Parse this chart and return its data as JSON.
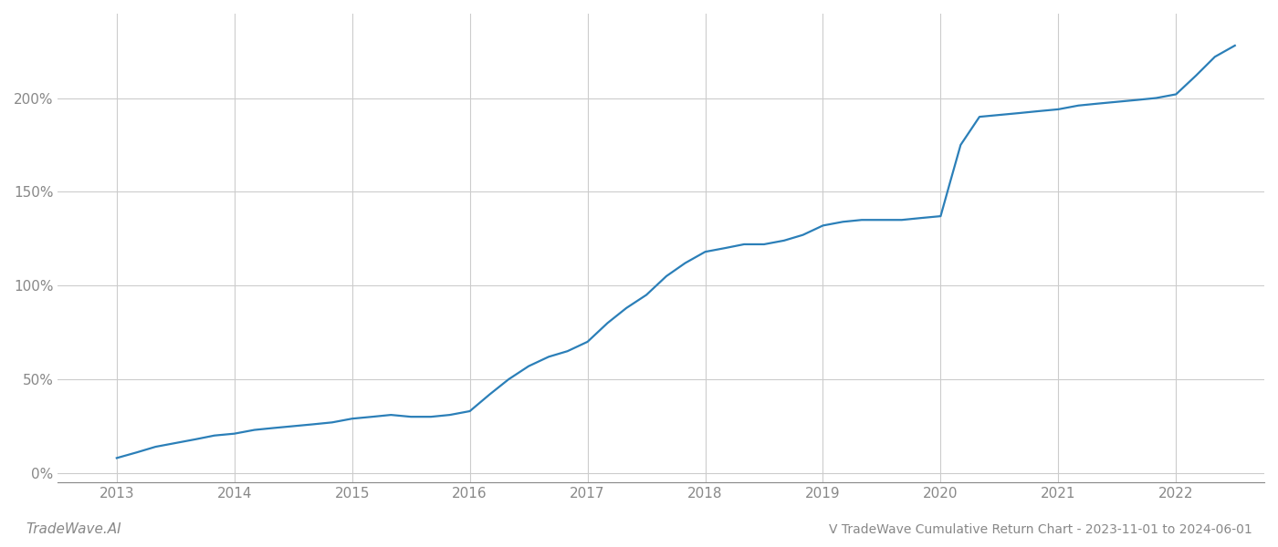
{
  "title": "V TradeWave Cumulative Return Chart - 2023-11-01 to 2024-06-01",
  "watermark": "TradeWave.AI",
  "line_color": "#2b7fb8",
  "line_width": 1.6,
  "background_color": "#ffffff",
  "grid_color": "#cccccc",
  "x_years": [
    2013,
    2014,
    2015,
    2016,
    2017,
    2018,
    2019,
    2020,
    2021,
    2022
  ],
  "x_data": [
    2013.0,
    2013.17,
    2013.33,
    2013.5,
    2013.67,
    2013.83,
    2014.0,
    2014.17,
    2014.33,
    2014.5,
    2014.67,
    2014.83,
    2015.0,
    2015.17,
    2015.33,
    2015.5,
    2015.67,
    2015.83,
    2016.0,
    2016.17,
    2016.33,
    2016.5,
    2016.67,
    2016.83,
    2017.0,
    2017.17,
    2017.33,
    2017.5,
    2017.67,
    2017.83,
    2018.0,
    2018.17,
    2018.33,
    2018.5,
    2018.67,
    2018.83,
    2019.0,
    2019.17,
    2019.33,
    2019.5,
    2019.67,
    2019.83,
    2020.0,
    2020.08,
    2020.17,
    2020.33,
    2020.5,
    2020.67,
    2020.83,
    2021.0,
    2021.17,
    2021.33,
    2021.5,
    2021.67,
    2021.83,
    2022.0,
    2022.17,
    2022.33,
    2022.5
  ],
  "y_data": [
    8,
    11,
    14,
    16,
    18,
    20,
    21,
    23,
    24,
    25,
    26,
    27,
    29,
    30,
    31,
    30,
    30,
    31,
    33,
    42,
    50,
    57,
    62,
    65,
    70,
    80,
    88,
    95,
    105,
    112,
    118,
    120,
    122,
    122,
    124,
    127,
    132,
    134,
    135,
    135,
    135,
    136,
    137,
    155,
    175,
    190,
    191,
    192,
    193,
    194,
    196,
    197,
    198,
    199,
    200,
    202,
    212,
    222,
    228
  ],
  "ylim": [
    -5,
    245
  ],
  "xlim": [
    2012.5,
    2022.75
  ],
  "yticks": [
    0,
    50,
    100,
    150,
    200
  ],
  "ytick_labels": [
    "0%",
    "50%",
    "100%",
    "150%",
    "200%"
  ],
  "title_fontsize": 10,
  "watermark_fontsize": 11,
  "tick_fontsize": 11,
  "tick_color": "#888888",
  "spine_color": "#888888"
}
